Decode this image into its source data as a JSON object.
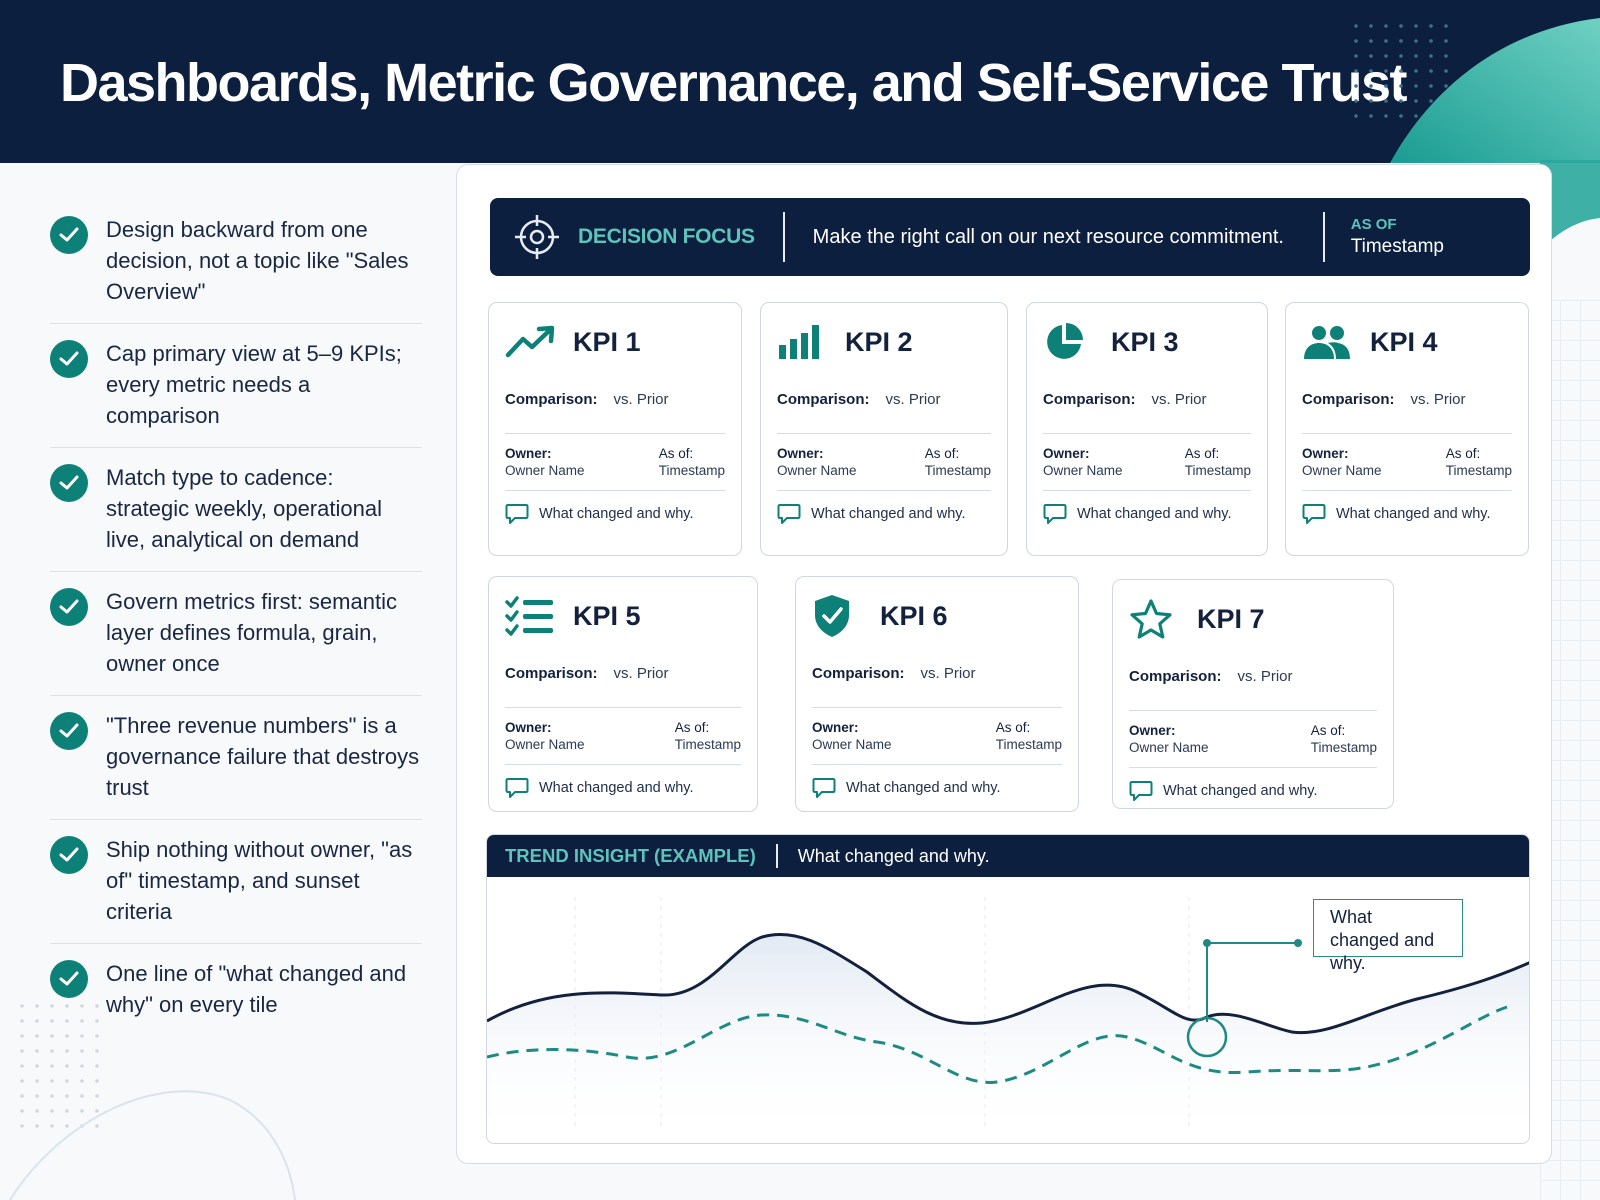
{
  "header": {
    "title": "Dashboards, Metric Governance, and Self-Service Trust"
  },
  "checklist": [
    {
      "text": "Design backward from one decision, not a topic like \"Sales Overview\"",
      "icon": "check-circle-icon"
    },
    {
      "text": "Cap primary view at 5–9 KPIs; every metric needs a comparison",
      "icon": "check-circle-icon"
    },
    {
      "text": "Match type to cadence: strategic weekly, operational live, analytical on demand",
      "icon": "check-circle-icon"
    },
    {
      "text": "Govern metrics first: semantic layer defines formula, grain, owner once",
      "icon": "check-circle-icon"
    },
    {
      "text": "\"Three revenue numbers\" is a governance failure that destroys trust",
      "icon": "check-circle-icon"
    },
    {
      "text": "Ship nothing without owner, \"as of\" timestamp, and sunset criteria",
      "icon": "check-circle-icon"
    },
    {
      "text": "One line of \"what changed and why\" on every tile",
      "icon": "check-circle-icon"
    }
  ],
  "decision": {
    "label": "DECISION FOCUS",
    "text": "Make the right call on our next resource commitment.",
    "asof_label": "AS OF",
    "asof_value": "Timestamp",
    "icon": "target-icon"
  },
  "kpis": [
    {
      "title": "KPI 1",
      "icon": "trend-up-icon",
      "comparison_label": "Comparison:",
      "comparison_value": "vs. Prior",
      "owner_label": "Owner:",
      "owner_value": "Owner Name",
      "asof_label": "As of:",
      "asof_value": "Timestamp",
      "note": "What changed and why."
    },
    {
      "title": "KPI 2",
      "icon": "bar-chart-icon",
      "comparison_label": "Comparison:",
      "comparison_value": "vs. Prior",
      "owner_label": "Owner:",
      "owner_value": "Owner Name",
      "asof_label": "As of:",
      "asof_value": "Timestamp",
      "note": "What changed and why."
    },
    {
      "title": "KPI 3",
      "icon": "pie-chart-icon",
      "comparison_label": "Comparison:",
      "comparison_value": "vs. Prior",
      "owner_label": "Owner:",
      "owner_value": "Owner Name",
      "asof_label": "As of:",
      "asof_value": "Timestamp",
      "note": "What changed and why."
    },
    {
      "title": "KPI 4",
      "icon": "users-icon",
      "comparison_label": "Comparison:",
      "comparison_value": "vs. Prior",
      "owner_label": "Owner:",
      "owner_value": "Owner Name",
      "asof_label": "As of:",
      "asof_value": "Timestamp",
      "note": "What changed and why."
    },
    {
      "title": "KPI 5",
      "icon": "checklist-icon",
      "comparison_label": "Comparison:",
      "comparison_value": "vs. Prior",
      "owner_label": "Owner:",
      "owner_value": "Owner Name",
      "asof_label": "As of:",
      "asof_value": "Timestamp",
      "note": "What changed and why."
    },
    {
      "title": "KPI 6",
      "icon": "shield-check-icon",
      "comparison_label": "Comparison:",
      "comparison_value": "vs. Prior",
      "owner_label": "Owner:",
      "owner_value": "Owner Name",
      "asof_label": "As of:",
      "asof_value": "Timestamp",
      "note": "What changed and why."
    },
    {
      "title": "KPI 7",
      "icon": "star-icon",
      "comparison_label": "Comparison:",
      "comparison_value": "vs. Prior",
      "owner_label": "Owner:",
      "owner_value": "Owner Name",
      "asof_label": "As of:",
      "asof_value": "Timestamp",
      "note": "What changed and why."
    }
  ],
  "trend": {
    "label": "TREND INSIGHT (EXAMPLE)",
    "text": "What changed and why.",
    "callout": "What changed and why."
  },
  "colors": {
    "navy": "#0c1f3f",
    "teal": "#0d8078",
    "teal_light": "#5ec4bb",
    "line_primary": "#14213d",
    "line_secondary": "#1e8a84"
  }
}
